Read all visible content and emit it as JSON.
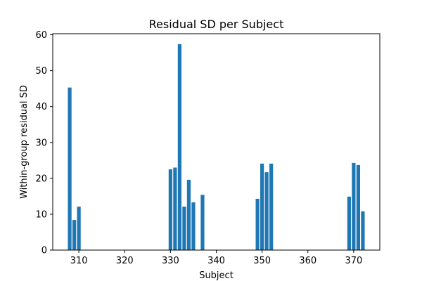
{
  "chart_data": {
    "type": "bar",
    "title": "Residual SD per Subject",
    "xlabel": "Subject",
    "ylabel": "Within-group residual SD",
    "xlim": [
      304.3,
      375.7
    ],
    "ylim": [
      0,
      60.3
    ],
    "xticks": [
      310,
      320,
      330,
      340,
      350,
      360,
      370
    ],
    "yticks": [
      0,
      10,
      20,
      30,
      40,
      50,
      60
    ],
    "grid": false,
    "bar_color": "#1f77b4",
    "bar_width": 0.8,
    "x": [
      308,
      309,
      310,
      330,
      331,
      332,
      333,
      334,
      335,
      337,
      349,
      350,
      351,
      352,
      369,
      370,
      371,
      372
    ],
    "values": [
      45.3,
      8.4,
      12.1,
      22.5,
      23.0,
      57.4,
      12.1,
      19.6,
      13.3,
      15.4,
      14.3,
      24.1,
      21.7,
      24.1,
      14.9,
      24.3,
      23.7,
      10.8
    ]
  }
}
